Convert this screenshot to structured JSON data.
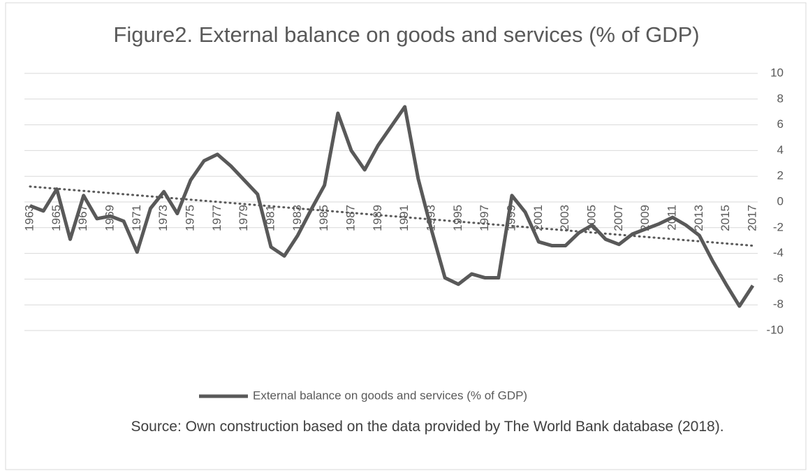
{
  "chart_data": {
    "type": "line",
    "title": "Figure2. External balance on goods and services (% of GDP)",
    "source": "Source: Own construction based on the data provided by The World Bank database (2018).",
    "categories": [
      "1963",
      null,
      "1965",
      null,
      "1967",
      null,
      "1969",
      null,
      "1971",
      null,
      "1973",
      null,
      "1975",
      null,
      "1977",
      null,
      "1979",
      null,
      "1981",
      null,
      "1983",
      null,
      "1985",
      null,
      "1987",
      null,
      "1989",
      null,
      "1991",
      null,
      "1993",
      null,
      "1995",
      null,
      "1997",
      null,
      "1999",
      null,
      "2001",
      null,
      "2003",
      null,
      "2005",
      null,
      "2007",
      null,
      "2009",
      null,
      "2011",
      null,
      "2013",
      null,
      "2015",
      null,
      "2017"
    ],
    "series": [
      {
        "name": "External balance on goods and services (% of GDP)",
        "color": "#595959",
        "values": [
          -0.3,
          -0.7,
          1.0,
          -2.9,
          0.5,
          -1.3,
          -1.1,
          -1.5,
          -3.9,
          -0.5,
          0.8,
          -0.9,
          1.7,
          3.2,
          3.7,
          2.8,
          1.7,
          0.6,
          -3.5,
          -4.2,
          -2.6,
          -0.6,
          1.3,
          6.9,
          4.0,
          2.5,
          4.4,
          5.9,
          7.4,
          1.8,
          -2.2,
          -5.9,
          -6.4,
          -5.6,
          -5.9,
          -5.9,
          0.5,
          -0.8,
          -3.1,
          -3.4,
          -3.4,
          -2.4,
          -1.8,
          -2.9,
          -3.3,
          -2.5,
          -2.1,
          -1.7,
          -1.2,
          -1.8,
          -2.6,
          -4.6,
          -6.4,
          -8.1,
          -6.5
        ]
      }
    ],
    "trend": {
      "start": 1.2,
      "end": -3.4,
      "color": "#595959"
    },
    "ylim": [
      -10,
      10
    ],
    "yticks": [
      -10,
      -8,
      -6,
      -4,
      -2,
      0,
      2,
      4,
      6,
      8,
      10
    ],
    "grid": true,
    "legend": "bottom"
  }
}
